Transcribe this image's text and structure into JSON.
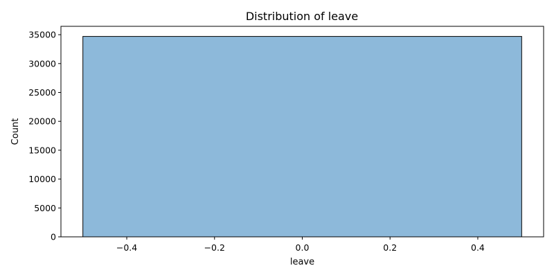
{
  "chart_data": {
    "type": "bar",
    "title": "Distribution of leave",
    "xlabel": "leave",
    "ylabel": "Count",
    "bins": [
      {
        "x_start": -0.5,
        "x_end": 0.5,
        "value": 34700
      }
    ],
    "xlim": [
      -0.55,
      0.55
    ],
    "ylim": [
      0,
      36450
    ],
    "x_ticks": [
      -0.4,
      -0.2,
      0.0,
      0.2,
      0.4
    ],
    "x_tick_labels": [
      "−0.4",
      "−0.2",
      "0.0",
      "0.2",
      "0.4"
    ],
    "y_ticks": [
      0,
      5000,
      10000,
      15000,
      20000,
      25000,
      30000,
      35000
    ],
    "y_tick_labels": [
      "0",
      "5000",
      "10000",
      "15000",
      "20000",
      "25000",
      "30000",
      "35000"
    ],
    "grid": false,
    "colors": {
      "bar_fill": "#8db9da",
      "bar_edge": "#000000"
    }
  }
}
